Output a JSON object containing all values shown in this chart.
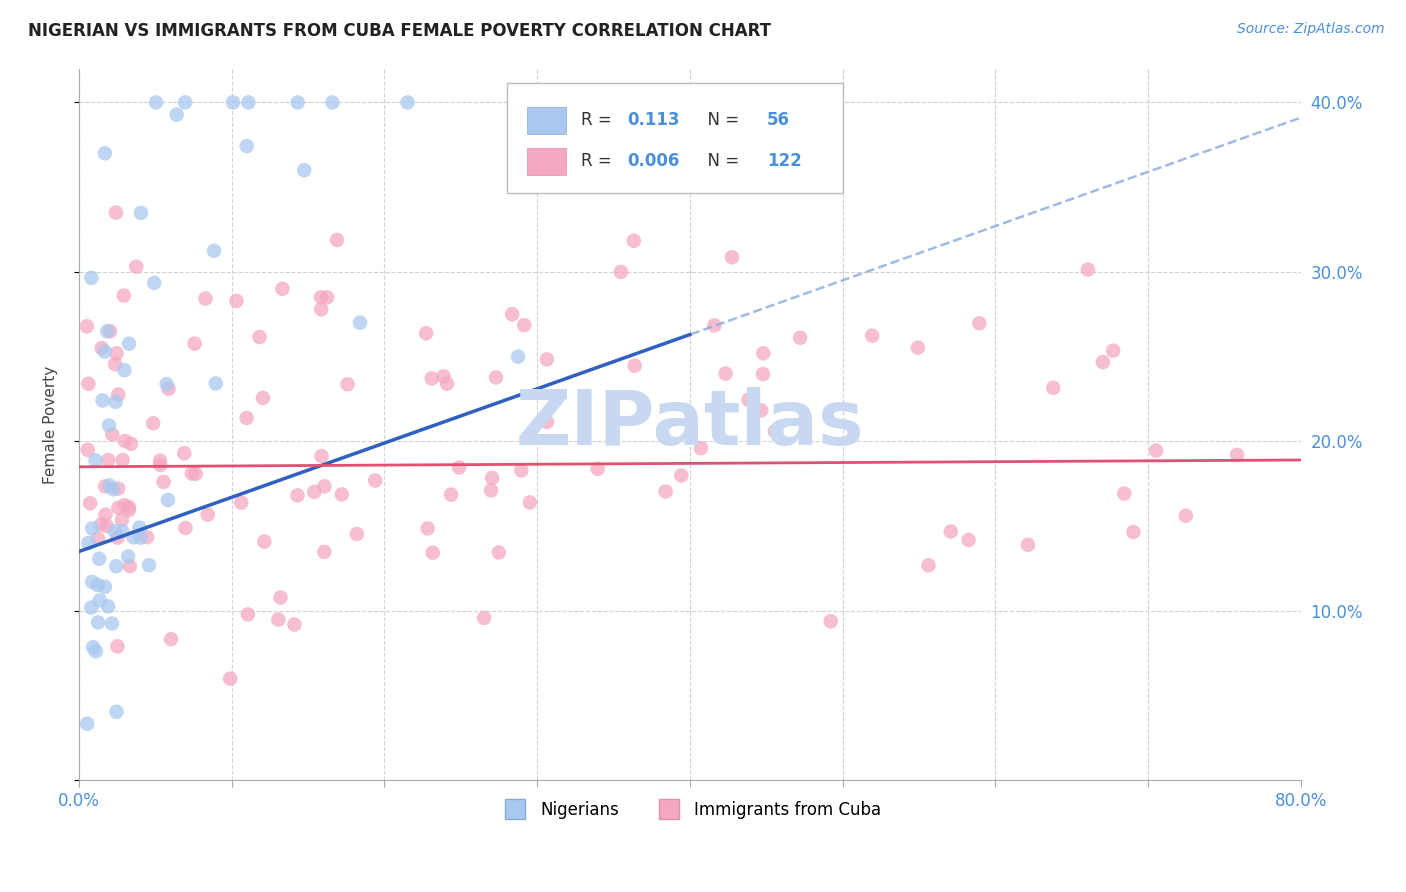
{
  "title": "NIGERIAN VS IMMIGRANTS FROM CUBA FEMALE POVERTY CORRELATION CHART",
  "source": "Source: ZipAtlas.com",
  "ylabel": "Female Poverty",
  "xlim": [
    0.0,
    0.8
  ],
  "ylim": [
    0.0,
    0.42
  ],
  "nigerian_color": "#a8c8f0",
  "cuba_color": "#f4a8c0",
  "nigerian_trend_color": "#3060c0",
  "cuba_trend_color": "#e05070",
  "watermark_text": "ZIPatlas",
  "watermark_color": "#c8d8f0",
  "background_color": "#ffffff",
  "grid_color": "#cccccc",
  "tick_label_color": "#4a90d9",
  "title_color": "#222222",
  "source_color": "#4a90d9",
  "legend_r1": "0.113",
  "legend_n1": "56",
  "legend_r2": "0.006",
  "legend_n2": "122",
  "legend_label1": "Nigerians",
  "legend_label2": "Immigrants from Cuba",
  "nig_seed": 42,
  "cuba_seed": 99
}
